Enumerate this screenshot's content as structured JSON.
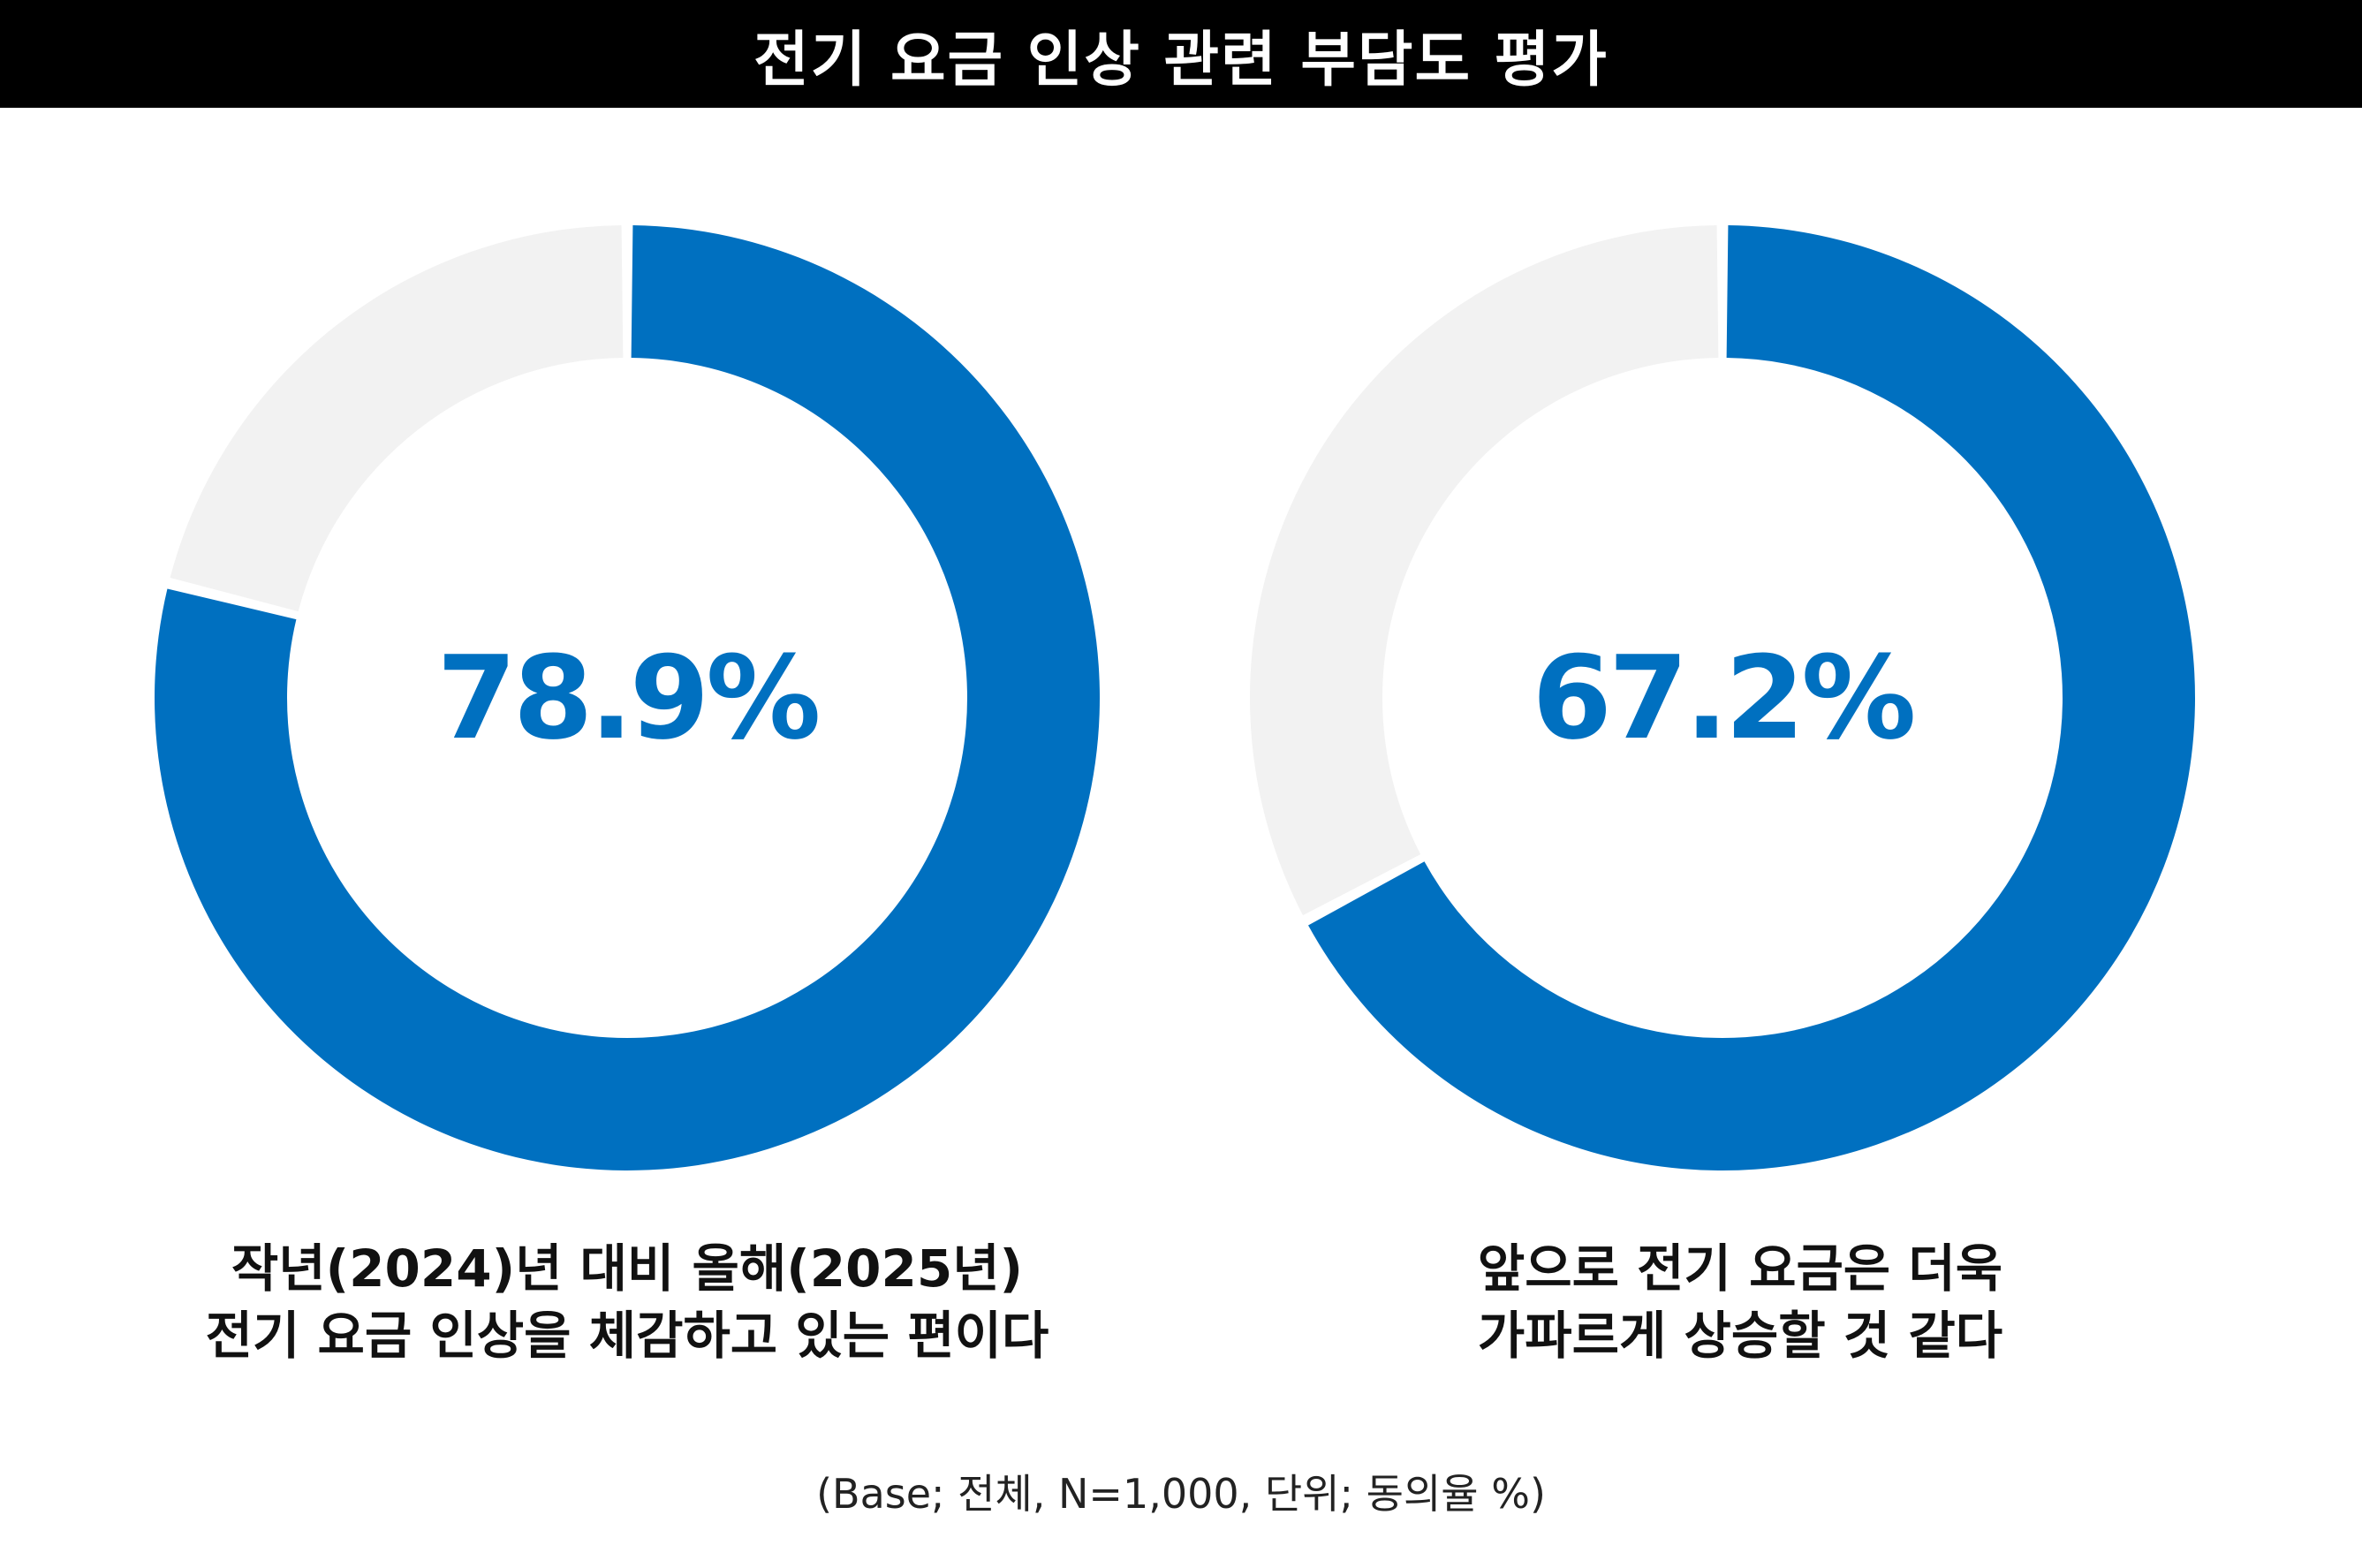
{
  "title": "전기 요금 인상 관련 부담도 평가",
  "footnote": "(Base; 전체, N=1,000, 단위; 동의율 %)",
  "colors": {
    "accent": "#0070C0",
    "remainder": "#F2F2F2",
    "title_bg": "#000000",
    "title_text": "#FFFFFF"
  },
  "chart_data": [
    {
      "type": "pie",
      "variant": "donut",
      "value": 78.9,
      "value_label": "78.9%",
      "caption_lines": [
        "작년(2024)년 대비 올해(2025년)",
        "전기 요금 인상을 체감하고 있는 편이다"
      ]
    },
    {
      "type": "pie",
      "variant": "donut",
      "value": 67.2,
      "value_label": "67.2%",
      "caption_lines": [
        "앞으로 전기 요금은 더욱",
        "가파르게 상승할 것 같다"
      ]
    }
  ]
}
